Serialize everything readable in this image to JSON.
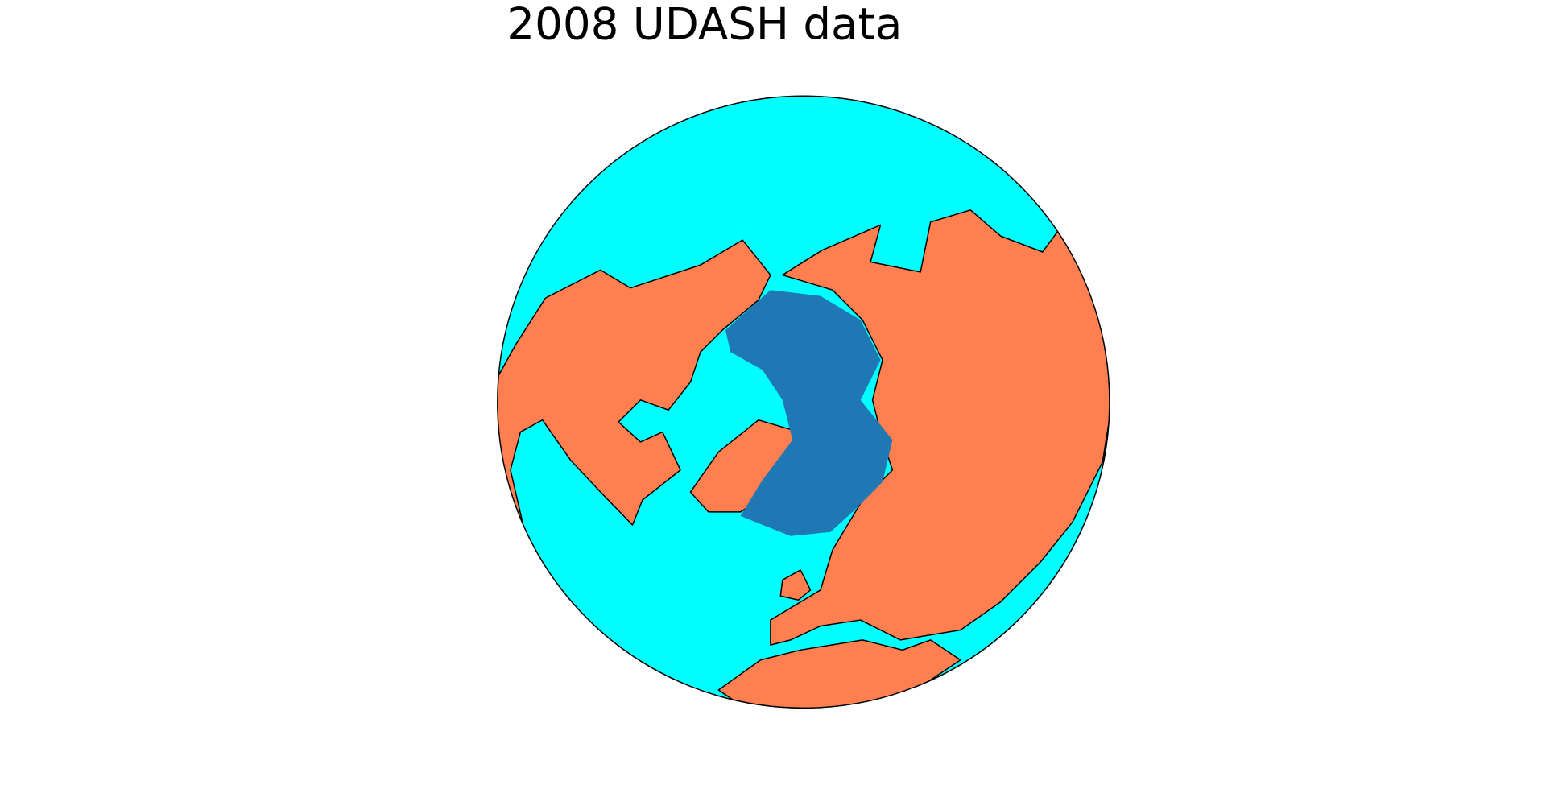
{
  "title": "2008 UDASH data"
}
